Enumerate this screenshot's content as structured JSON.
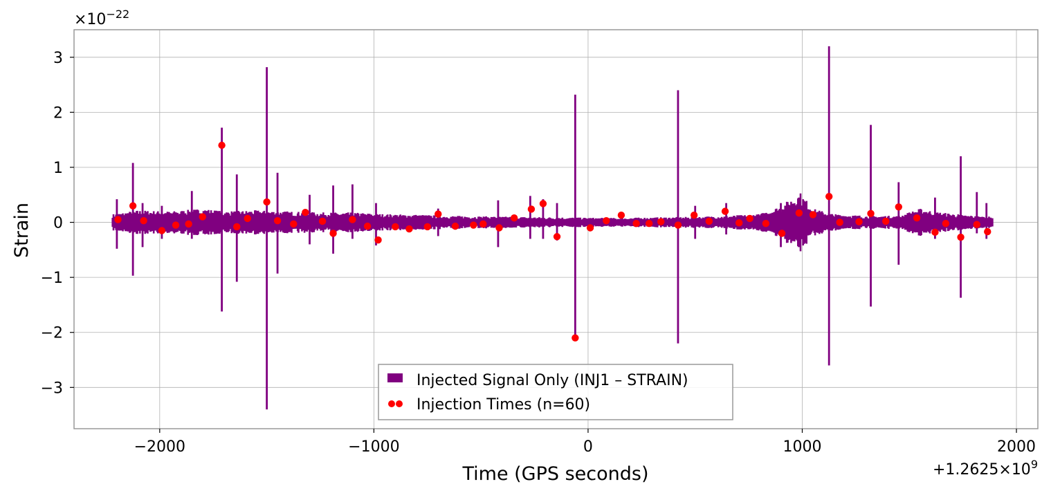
{
  "chart_data": {
    "type": "line",
    "title": "",
    "xlabel": "Time (GPS seconds)",
    "ylabel": "Strain",
    "x_offset_label": "+1.2625×10",
    "x_offset_exp": "9",
    "y_scale_label": "×10",
    "y_scale_exp": "−22",
    "xlim": [
      -2400,
      2100
    ],
    "ylim": [
      -3.75,
      3.5
    ],
    "x_ticks": [
      -2000,
      -1000,
      0,
      1000,
      2000
    ],
    "x_tick_labels": [
      "−2000",
      "−1000",
      "0",
      "1000",
      "2000"
    ],
    "y_ticks": [
      -3,
      -2,
      -1,
      0,
      1,
      2,
      3
    ],
    "y_tick_labels": [
      "−3",
      "−2",
      "−1",
      "0",
      "1",
      "2",
      "3"
    ],
    "grid": true,
    "legend_position": "bottom-center",
    "signal_range": [
      -2220,
      1890
    ],
    "series": [
      {
        "name": "Injected Signal Only (INJ1 – STRAIN)",
        "color": "#800080",
        "kind": "filled-band",
        "envelope": [
          {
            "x": -2220,
            "h": 0.15
          },
          {
            "x": -2100,
            "h": 0.22
          },
          {
            "x": -1950,
            "h": 0.2
          },
          {
            "x": -1800,
            "h": 0.25
          },
          {
            "x": -1700,
            "h": 0.2
          },
          {
            "x": -1550,
            "h": 0.22
          },
          {
            "x": -1400,
            "h": 0.2
          },
          {
            "x": -1250,
            "h": 0.18
          },
          {
            "x": -1100,
            "h": 0.18
          },
          {
            "x": -950,
            "h": 0.15
          },
          {
            "x": -800,
            "h": 0.14
          },
          {
            "x": -650,
            "h": 0.12
          },
          {
            "x": -500,
            "h": 0.11
          },
          {
            "x": -300,
            "h": 0.1
          },
          {
            "x": -100,
            "h": 0.09
          },
          {
            "x": 100,
            "h": 0.08
          },
          {
            "x": 300,
            "h": 0.09
          },
          {
            "x": 500,
            "h": 0.1
          },
          {
            "x": 650,
            "h": 0.12
          },
          {
            "x": 800,
            "h": 0.15
          },
          {
            "x": 900,
            "h": 0.3
          },
          {
            "x": 990,
            "h": 0.55
          },
          {
            "x": 1050,
            "h": 0.25
          },
          {
            "x": 1150,
            "h": 0.15
          },
          {
            "x": 1300,
            "h": 0.12
          },
          {
            "x": 1450,
            "h": 0.12
          },
          {
            "x": 1550,
            "h": 0.25
          },
          {
            "x": 1650,
            "h": 0.18
          },
          {
            "x": 1800,
            "h": 0.12
          },
          {
            "x": 1890,
            "h": 0.1
          }
        ],
        "spikes": [
          {
            "x": -2200,
            "top": 0.42,
            "bottom": -0.48
          },
          {
            "x": -2125,
            "top": 1.08,
            "bottom": -0.97
          },
          {
            "x": -2080,
            "top": 0.35,
            "bottom": -0.45
          },
          {
            "x": -1990,
            "top": 0.3,
            "bottom": -0.3
          },
          {
            "x": -1850,
            "top": 0.57,
            "bottom": -0.3
          },
          {
            "x": -1710,
            "top": 1.72,
            "bottom": -1.62
          },
          {
            "x": -1640,
            "top": 0.87,
            "bottom": -1.08
          },
          {
            "x": -1500,
            "top": 2.82,
            "bottom": -3.4
          },
          {
            "x": -1450,
            "top": 0.9,
            "bottom": -0.93
          },
          {
            "x": -1300,
            "top": 0.5,
            "bottom": -0.4
          },
          {
            "x": -1190,
            "top": 0.67,
            "bottom": -0.57
          },
          {
            "x": -1100,
            "top": 0.69,
            "bottom": -0.3
          },
          {
            "x": -990,
            "top": 0.35,
            "bottom": -0.42
          },
          {
            "x": -700,
            "top": 0.25,
            "bottom": -0.25
          },
          {
            "x": -420,
            "top": 0.4,
            "bottom": -0.45
          },
          {
            "x": -270,
            "top": 0.48,
            "bottom": -0.3
          },
          {
            "x": -210,
            "top": 0.42,
            "bottom": -0.3
          },
          {
            "x": -145,
            "top": 0.35,
            "bottom": -0.33
          },
          {
            "x": -60,
            "top": 2.32,
            "bottom": -2.1
          },
          {
            "x": 420,
            "top": 2.4,
            "bottom": -2.2
          },
          {
            "x": 500,
            "top": 0.3,
            "bottom": -0.3
          },
          {
            "x": 645,
            "top": 0.35,
            "bottom": -0.22
          },
          {
            "x": 900,
            "top": 0.35,
            "bottom": -0.45
          },
          {
            "x": 1125,
            "top": 3.2,
            "bottom": -2.6
          },
          {
            "x": 1320,
            "top": 1.77,
            "bottom": -1.53
          },
          {
            "x": 1450,
            "top": 0.73,
            "bottom": -0.77
          },
          {
            "x": 1620,
            "top": 0.45,
            "bottom": -0.3
          },
          {
            "x": 1740,
            "top": 1.2,
            "bottom": -1.37
          },
          {
            "x": 1815,
            "top": 0.55,
            "bottom": -0.2
          },
          {
            "x": 1860,
            "top": 0.35,
            "bottom": -0.3
          }
        ]
      },
      {
        "name": "Injection Times (n=60)",
        "color": "#ff0000",
        "kind": "markers",
        "x": [
          -2195,
          -2125,
          -2075,
          -1990,
          -1925,
          -1865,
          -1800,
          -1710,
          -1640,
          -1590,
          -1500,
          -1450,
          -1375,
          -1320,
          -1240,
          -1190,
          -1100,
          -1030,
          -980,
          -900,
          -835,
          -750,
          -700,
          -620,
          -535,
          -490,
          -415,
          -345,
          -265,
          -210,
          -145,
          -60,
          10,
          85,
          155,
          225,
          285,
          340,
          420,
          495,
          565,
          640,
          705,
          755,
          830,
          905,
          985,
          1050,
          1125,
          1175,
          1265,
          1320,
          1390,
          1450,
          1535,
          1620,
          1670,
          1740,
          1815,
          1865
        ],
        "y": [
          0.05,
          0.3,
          0.03,
          -0.15,
          -0.05,
          -0.03,
          0.1,
          1.4,
          -0.08,
          0.07,
          0.37,
          0.03,
          -0.03,
          0.18,
          0.02,
          -0.2,
          0.05,
          -0.07,
          -0.32,
          -0.08,
          -0.12,
          -0.08,
          0.15,
          -0.07,
          -0.05,
          -0.03,
          -0.1,
          0.08,
          0.24,
          0.34,
          -0.26,
          -2.1,
          -0.1,
          0.03,
          0.13,
          -0.02,
          -0.02,
          0.01,
          -0.05,
          0.13,
          0.02,
          0.2,
          -0.01,
          0.07,
          -0.02,
          -0.2,
          0.17,
          0.14,
          0.47,
          0.0,
          0.01,
          0.16,
          0.02,
          0.28,
          0.08,
          -0.18,
          -0.02,
          -0.27,
          -0.04,
          -0.17
        ]
      }
    ]
  }
}
